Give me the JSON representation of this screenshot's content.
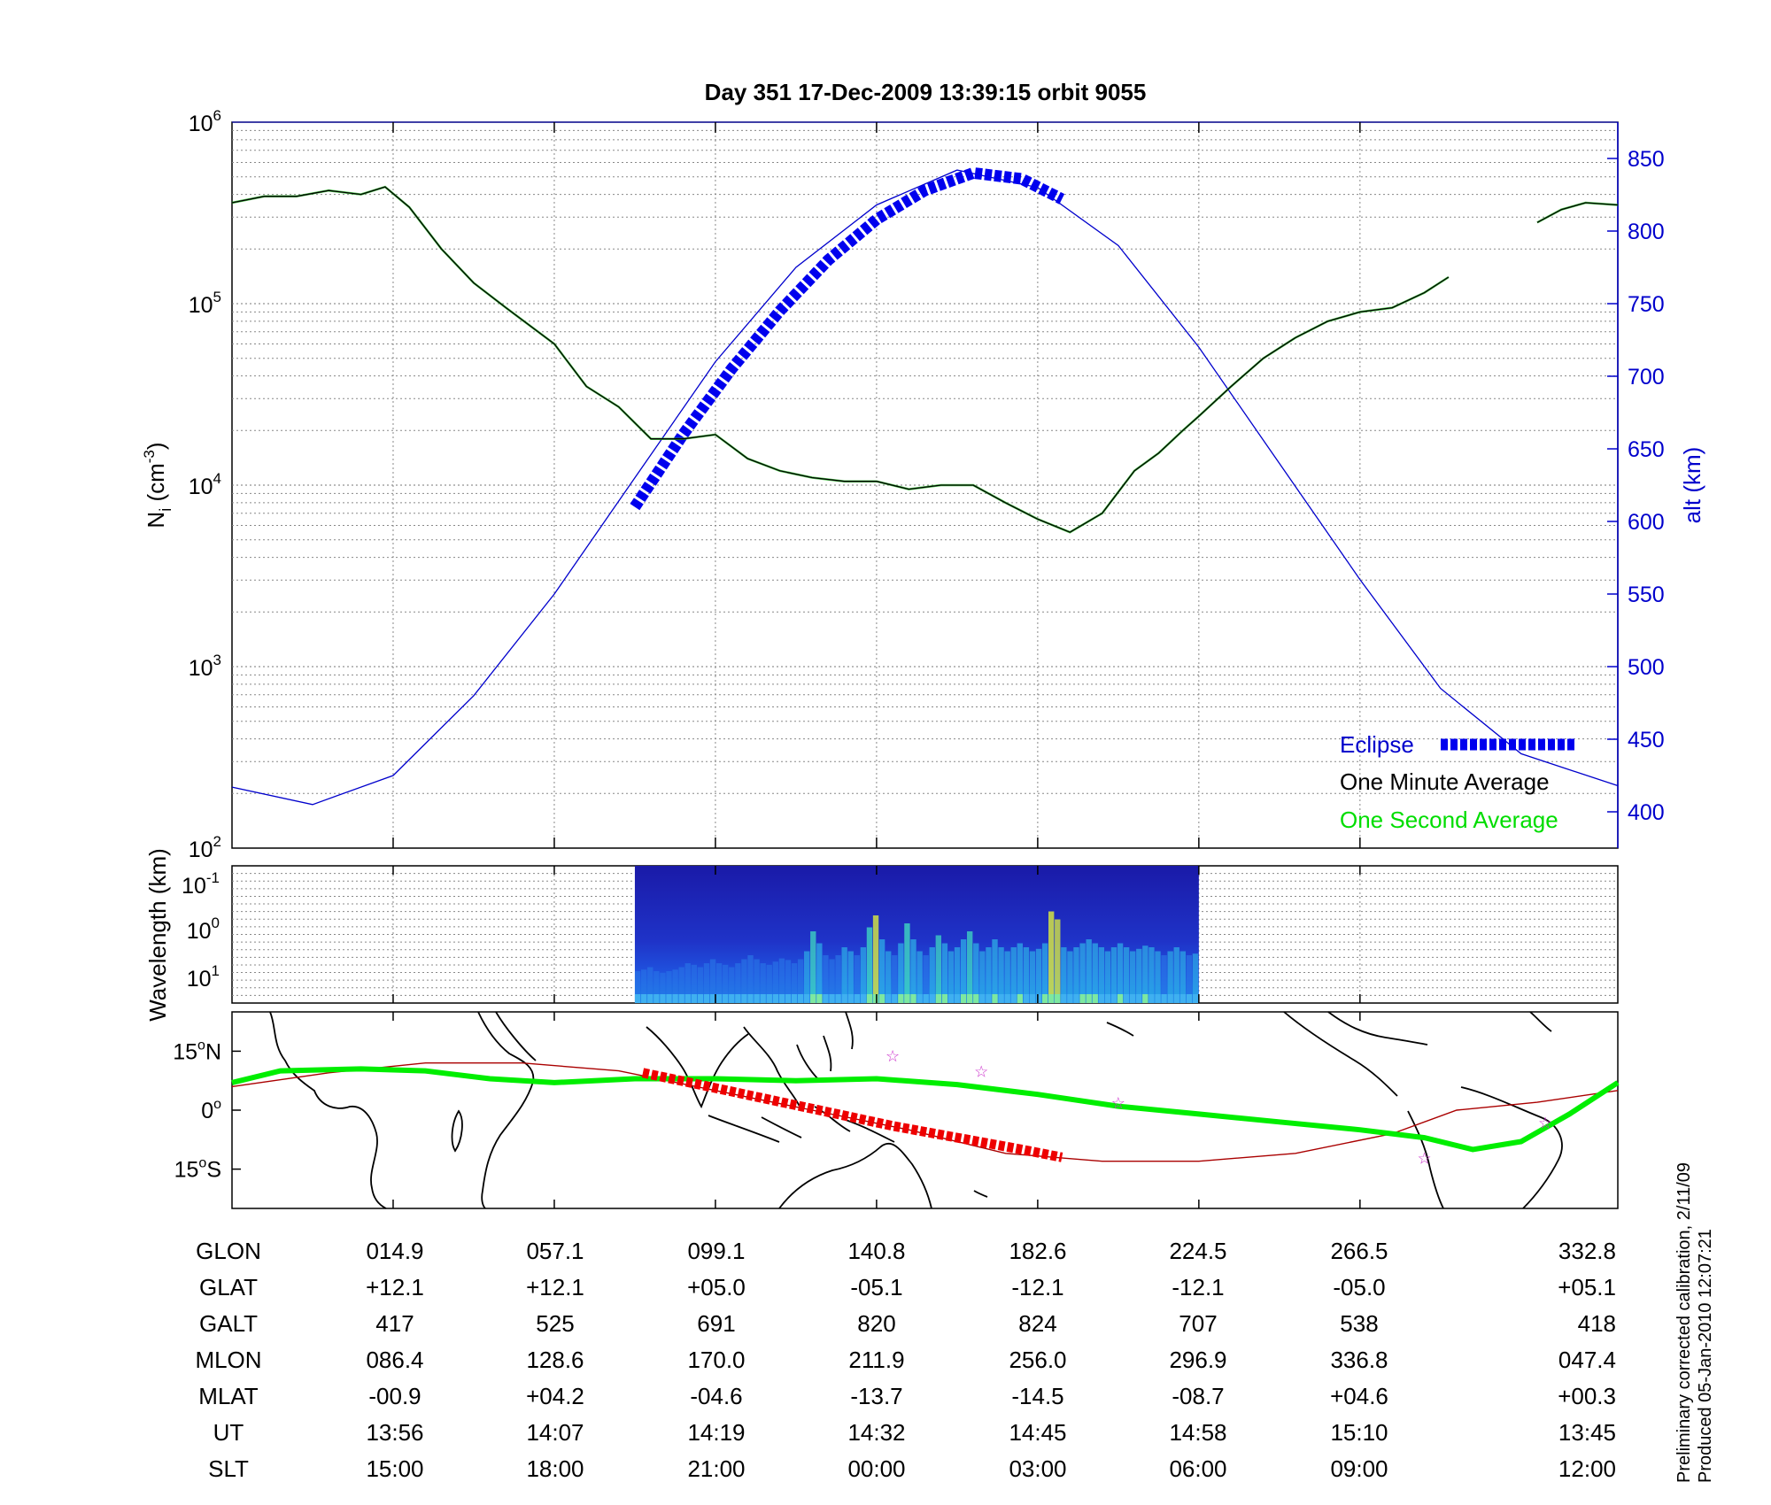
{
  "title": "Day 351  17-Dec-2009 13:39:15   orbit 9055",
  "footnote": {
    "line1": "Preliminary corrected calibration, 2/11/09",
    "line2": "Produced 05-Jan-2010 12:07:21"
  },
  "colors": {
    "altitude": "#0000cc",
    "eclipse": "#0000ee",
    "one_minute": "#000000",
    "one_second": "#00dd00",
    "track_ground": "#00ee00",
    "track_eclipse": "#ee0000",
    "mag_equator": "#aa0000",
    "stars": "#cc33cc"
  },
  "chart_data": [
    {
      "id": "density",
      "type": "line",
      "ylabel_main": "N",
      "ylabel_sub": "i",
      "ylabel_unit_pre": "(cm",
      "ylabel_unit_sup": "-3",
      "ylabel_unit_post": ")",
      "y2label": "alt (km)",
      "yscale": "log",
      "ylim": [
        100,
        1000000
      ],
      "y_ticks": [
        {
          "base": "10",
          "exp": "2",
          "value": 100
        },
        {
          "base": "10",
          "exp": "3",
          "value": 1000
        },
        {
          "base": "10",
          "exp": "4",
          "value": 10000
        },
        {
          "base": "10",
          "exp": "5",
          "value": 100000
        },
        {
          "base": "10",
          "exp": "6",
          "value": 1000000
        }
      ],
      "y2lim": [
        375,
        875
      ],
      "y2_ticks": [
        "400",
        "450",
        "500",
        "550",
        "600",
        "650",
        "700",
        "750",
        "800",
        "850"
      ],
      "xlim": [
        0,
        8.6
      ],
      "grid": true,
      "legend_position": "bottom-right",
      "legend": [
        {
          "label": "Eclipse",
          "style": "eclipse"
        },
        {
          "label": "One Minute Average",
          "style": "one_minute"
        },
        {
          "label": "One Second Average",
          "style": "one_second"
        }
      ],
      "series": [
        {
          "name": "One Minute Average",
          "x": [
            0,
            0.2,
            0.4,
            0.6,
            0.8,
            0.95,
            1.1,
            1.3,
            1.5,
            1.7,
            2.0,
            2.2,
            2.4,
            2.6,
            2.8,
            3.0,
            3.2,
            3.4,
            3.6,
            3.8,
            4.0,
            4.2,
            4.4,
            4.6,
            4.8,
            5.0,
            5.2,
            5.4,
            5.6,
            5.75,
            5.9,
            6.0,
            6.2,
            6.4,
            6.6,
            6.8,
            7.0,
            7.2,
            7.4,
            7.55
          ],
          "y": [
            360000,
            390000,
            390000,
            420000,
            400000,
            440000,
            340000,
            200000,
            130000,
            95000,
            60000,
            35000,
            27000,
            18000,
            18000,
            19000,
            14000,
            12000,
            11000,
            10500,
            10500,
            9500,
            10000,
            10000,
            8000,
            6500,
            5500,
            7000,
            12000,
            15000,
            20000,
            24000,
            35000,
            50000,
            65000,
            80000,
            90000,
            95000,
            115000,
            140000
          ]
        },
        {
          "name": "One Minute Average (orbit resumed)",
          "x": [
            8.1,
            8.25,
            8.4,
            8.6
          ],
          "y": [
            280000,
            330000,
            360000,
            350000
          ]
        },
        {
          "name": "Altitude (km)",
          "axis": "right",
          "x": [
            0,
            0.5,
            1,
            1.5,
            2,
            2.5,
            3,
            3.5,
            4,
            4.5,
            5,
            5.5,
            6,
            6.5,
            7,
            7.5,
            8,
            8.6
          ],
          "y": [
            417,
            405,
            425,
            480,
            550,
            630,
            710,
            775,
            818,
            842,
            830,
            790,
            720,
            640,
            560,
            485,
            440,
            418
          ]
        },
        {
          "name": "Eclipse",
          "axis": "right",
          "x": [
            2.5,
            2.8,
            3.1,
            3.4,
            3.7,
            4.0,
            4.3,
            4.6,
            4.9,
            5.15
          ],
          "y": [
            610,
            660,
            705,
            745,
            780,
            808,
            828,
            840,
            836,
            822
          ]
        }
      ]
    },
    {
      "id": "spectrogram",
      "type": "heatmap",
      "ylabel": "Wavelength (km)",
      "y_ticks": [
        {
          "base": "10",
          "exp": "-1"
        },
        {
          "base": "10",
          "exp": "0"
        },
        {
          "base": "10",
          "exp": "1"
        }
      ],
      "xlim": [
        0,
        8.6
      ],
      "data_xrange": [
        2.5,
        6.0
      ],
      "column_intensity": [
        0.2,
        0.22,
        0.25,
        0.2,
        0.18,
        0.2,
        0.22,
        0.25,
        0.3,
        0.28,
        0.25,
        0.3,
        0.35,
        0.3,
        0.28,
        0.25,
        0.3,
        0.35,
        0.4,
        0.35,
        0.3,
        0.28,
        0.32,
        0.36,
        0.34,
        0.3,
        0.35,
        0.45,
        0.7,
        0.55,
        0.4,
        0.35,
        0.4,
        0.5,
        0.45,
        0.4,
        0.5,
        0.75,
        0.9,
        0.6,
        0.45,
        0.4,
        0.55,
        0.8,
        0.6,
        0.45,
        0.4,
        0.5,
        0.65,
        0.55,
        0.45,
        0.5,
        0.6,
        0.7,
        0.55,
        0.45,
        0.5,
        0.6,
        0.5,
        0.45,
        0.5,
        0.55,
        0.5,
        0.45,
        0.48,
        0.55,
        0.95,
        0.85,
        0.5,
        0.45,
        0.5,
        0.55,
        0.6,
        0.55,
        0.5,
        0.45,
        0.5,
        0.55,
        0.5,
        0.45,
        0.48,
        0.52,
        0.5,
        0.45,
        0.4,
        0.45,
        0.5,
        0.45,
        0.4,
        0.42
      ]
    },
    {
      "id": "ground_track",
      "type": "line",
      "y_ticks": [
        {
          "label": "15",
          "deg": "o",
          "hemi": "N",
          "value": 15
        },
        {
          "label": "0",
          "deg": "o",
          "hemi": "",
          "value": 0
        },
        {
          "label": "15",
          "deg": "o",
          "hemi": "S",
          "value": -15
        }
      ],
      "ylim": [
        -25,
        25
      ],
      "xlim": [
        0,
        8.6
      ],
      "series": [
        {
          "name": "Ground track",
          "x": [
            0,
            0.3,
            0.8,
            1.2,
            1.6,
            2.0,
            2.5,
            3.0,
            3.5,
            4.0,
            4.5,
            5.0,
            5.5,
            6.0,
            6.5,
            7.0,
            7.4,
            7.7,
            8.0,
            8.3,
            8.6
          ],
          "y": [
            7,
            10,
            10.5,
            10,
            8,
            7,
            8,
            8,
            7.5,
            8,
            6.5,
            4,
            1,
            -1,
            -3,
            -5,
            -7,
            -10,
            -8,
            -1,
            7
          ]
        },
        {
          "name": "Eclipse track",
          "x": [
            2.55,
            2.9,
            3.3,
            3.7,
            4.1,
            4.5,
            4.9,
            5.15
          ],
          "y": [
            9.5,
            6.5,
            3,
            -0.5,
            -4,
            -7,
            -10,
            -12
          ]
        },
        {
          "name": "Magnetic equator",
          "x": [
            0,
            0.6,
            1.2,
            1.8,
            2.4,
            3.0,
            3.6,
            4.2,
            4.8,
            5.4,
            6.0,
            6.6,
            7.2,
            7.6,
            8.1,
            8.6
          ],
          "y": [
            6,
            9.5,
            12,
            12,
            10,
            5,
            0,
            -5,
            -11,
            -13,
            -13,
            -11,
            -6,
            0,
            2,
            5
          ]
        },
        {
          "name": "Stars",
          "x": [
            4.1,
            4.65,
            5.5,
            7.4,
            8.15
          ],
          "y": [
            14,
            10,
            2,
            -12,
            -3
          ]
        }
      ]
    },
    {
      "id": "orbit_table",
      "type": "table",
      "rows": [
        {
          "label": "GLON",
          "values": [
            "014.9",
            "057.1",
            "099.1",
            "140.8",
            "182.6",
            "224.5",
            "266.5",
            "332.8"
          ]
        },
        {
          "label": "GLAT",
          "values": [
            "+12.1",
            "+12.1",
            "+05.0",
            "-05.1",
            "-12.1",
            "-12.1",
            "-05.0",
            "+05.1"
          ]
        },
        {
          "label": "GALT",
          "values": [
            "417",
            "525",
            "691",
            "820",
            "824",
            "707",
            "538",
            "418"
          ]
        },
        {
          "label": "MLON",
          "values": [
            "086.4",
            "128.6",
            "170.0",
            "211.9",
            "256.0",
            "296.9",
            "336.8",
            "047.4"
          ]
        },
        {
          "label": "MLAT",
          "values": [
            "-00.9",
            "+04.2",
            "-04.6",
            "-13.7",
            "-14.5",
            "-08.7",
            "+04.6",
            "+00.3"
          ]
        },
        {
          "label": "UT",
          "values": [
            "13:56",
            "14:07",
            "14:19",
            "14:32",
            "14:45",
            "14:58",
            "15:10",
            "13:45"
          ]
        },
        {
          "label": "SLT",
          "values": [
            "15:00",
            "18:00",
            "21:00",
            "00:00",
            "03:00",
            "06:00",
            "09:00",
            "12:00"
          ]
        }
      ]
    }
  ]
}
